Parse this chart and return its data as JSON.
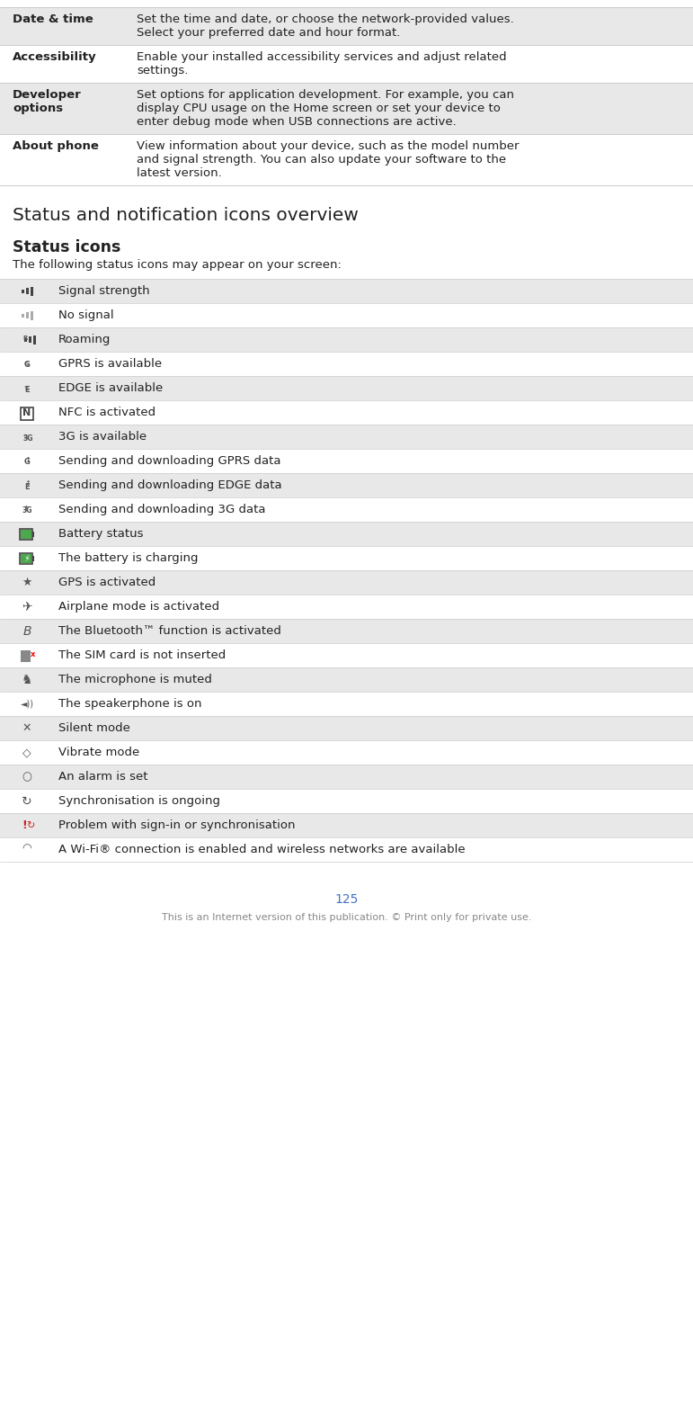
{
  "bg_color": "#ffffff",
  "table_rows": [
    {
      "label": "Date & time",
      "text": "Set the time and date, or choose the network-provided values.\nSelect your preferred date and hour format.",
      "bg": "#e8e8e8"
    },
    {
      "label": "Accessibility",
      "text": "Enable your installed accessibility services and adjust related\nsettings.",
      "bg": "#ffffff"
    },
    {
      "label": "Developer\noptions",
      "text": "Set options for application development. For example, you can\ndisplay CPU usage on the Home screen or set your device to\nenter debug mode when USB connections are active.",
      "bg": "#e8e8e8"
    },
    {
      "label": "About phone",
      "text": "View information about your device, such as the model number\nand signal strength. You can also update your software to the\nlatest version.",
      "bg": "#ffffff"
    }
  ],
  "section_title": "Status and notification icons overview",
  "subsection_title": "Status icons",
  "subsection_intro": "The following status icons may appear on your screen:",
  "icon_rows": [
    {
      "icon": "sig",
      "icon_color": "#555555",
      "text": "Signal strength",
      "bg": "#e8e8e8"
    },
    {
      "icon": "nosig",
      "icon_color": "#aaaaaa",
      "text": "No signal",
      "bg": "#ffffff"
    },
    {
      "icon": "roam",
      "icon_color": "#555555",
      "text": "Roaming",
      "bg": "#e8e8e8"
    },
    {
      "icon": "gprs_av",
      "icon_color": "#555555",
      "text": "GPRS is available",
      "bg": "#ffffff"
    },
    {
      "icon": "edge_av",
      "icon_color": "#555555",
      "text": "EDGE is available",
      "bg": "#e8e8e8"
    },
    {
      "icon": "nfc",
      "icon_color": "#555555",
      "text": "NFC is activated",
      "bg": "#ffffff"
    },
    {
      "icon": "3g_av",
      "icon_color": "#555555",
      "text": "3G is available",
      "bg": "#e8e8e8"
    },
    {
      "icon": "gprs_tx",
      "icon_color": "#555555",
      "text": "Sending and downloading GPRS data",
      "bg": "#ffffff"
    },
    {
      "icon": "edge_tx",
      "icon_color": "#555555",
      "text": "Sending and downloading EDGE data",
      "bg": "#e8e8e8"
    },
    {
      "icon": "3g_tx",
      "icon_color": "#555555",
      "text": "Sending and downloading 3G data",
      "bg": "#ffffff"
    },
    {
      "icon": "bat",
      "icon_color": "#4ca84c",
      "text": "Battery status",
      "bg": "#e8e8e8"
    },
    {
      "icon": "bat_chg",
      "icon_color": "#4ca84c",
      "text": "The battery is charging",
      "bg": "#ffffff"
    },
    {
      "icon": "gps",
      "icon_color": "#555555",
      "text": "GPS is activated",
      "bg": "#e8e8e8"
    },
    {
      "icon": "plane",
      "icon_color": "#555555",
      "text": "Airplane mode is activated",
      "bg": "#ffffff"
    },
    {
      "icon": "bt",
      "icon_color": "#555555",
      "text": "The Bluetooth™ function is activated",
      "bg": "#e8e8e8"
    },
    {
      "icon": "sim",
      "icon_color": "#555555",
      "text": "The SIM card is not inserted",
      "bg": "#ffffff"
    },
    {
      "icon": "mic",
      "icon_color": "#555555",
      "text": "The microphone is muted",
      "bg": "#e8e8e8"
    },
    {
      "icon": "spkr",
      "icon_color": "#555555",
      "text": "The speakerphone is on",
      "bg": "#ffffff"
    },
    {
      "icon": "silent",
      "icon_color": "#555555",
      "text": "Silent mode",
      "bg": "#e8e8e8"
    },
    {
      "icon": "vib",
      "icon_color": "#555555",
      "text": "Vibrate mode",
      "bg": "#ffffff"
    },
    {
      "icon": "alarm",
      "icon_color": "#555555",
      "text": "An alarm is set",
      "bg": "#e8e8e8"
    },
    {
      "icon": "sync",
      "icon_color": "#555555",
      "text": "Synchronisation is ongoing",
      "bg": "#ffffff"
    },
    {
      "icon": "sync_err",
      "icon_color": "#cc2222",
      "text": "Problem with sign-in or synchronisation",
      "bg": "#e8e8e8"
    },
    {
      "icon": "wifi",
      "icon_color": "#555555",
      "text": "A Wi-Fi® connection is enabled and wireless networks are available",
      "bg": "#ffffff"
    }
  ],
  "page_number": "125",
  "footer_text": "This is an Internet version of this publication. © Print only for private use."
}
